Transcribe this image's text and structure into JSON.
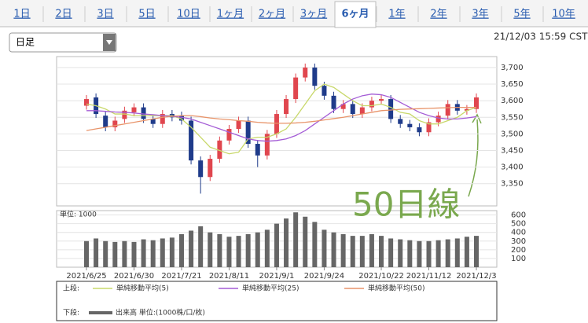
{
  "tabs": [
    "1日",
    "2日",
    "3日",
    "5日",
    "10日",
    "1ヶ月",
    "2ヶ月",
    "3ヶ月",
    "6ヶ月",
    "1年",
    "2年",
    "3年",
    "5年",
    "10年"
  ],
  "selected_tab": 8,
  "dropdown": "日足",
  "timestamp": "21/12/03 15:59 CST",
  "chart_data": {
    "type": "candlestick",
    "categories": [
      "2021/6/25",
      null,
      null,
      null,
      null,
      "2021/6/30",
      null,
      null,
      null,
      null,
      "2021/7/21",
      null,
      null,
      null,
      null,
      "2021/8/11",
      null,
      null,
      null,
      null,
      "2021/9/1",
      null,
      null,
      null,
      null,
      "2021/9/24",
      null,
      null,
      null,
      null,
      null,
      "2021/10/22",
      null,
      null,
      null,
      null,
      "2021/11/12",
      null,
      null,
      null,
      null,
      "2021/12/3"
    ],
    "open": [
      3585,
      3610,
      3555,
      3520,
      3545,
      3565,
      3580,
      3545,
      3530,
      3560,
      3555,
      3540,
      3420,
      3370,
      3425,
      3480,
      3515,
      3540,
      3470,
      3435,
      3500,
      3560,
      3605,
      3670,
      3700,
      3645,
      3615,
      3575,
      3590,
      3560,
      3580,
      3600,
      3605,
      3545,
      3530,
      3520,
      3505,
      3535,
      3555,
      3590,
      3570,
      3575
    ],
    "high": [
      3617,
      3622,
      3567,
      3552,
      3582,
      3592,
      3592,
      3557,
      3572,
      3572,
      3567,
      3552,
      3432,
      3437,
      3492,
      3527,
      3552,
      3552,
      3482,
      3512,
      3572,
      3617,
      3682,
      3712,
      3712,
      3657,
      3627,
      3602,
      3602,
      3592,
      3612,
      3617,
      3617,
      3557,
      3542,
      3532,
      3547,
      3567,
      3602,
      3602,
      3587,
      3622
    ],
    "low": [
      3573,
      3548,
      3508,
      3508,
      3533,
      3553,
      3533,
      3518,
      3518,
      3538,
      3528,
      3408,
      3320,
      3358,
      3413,
      3468,
      3503,
      3458,
      3400,
      3423,
      3488,
      3548,
      3593,
      3658,
      3633,
      3603,
      3563,
      3563,
      3548,
      3548,
      3568,
      3588,
      3533,
      3518,
      3508,
      3493,
      3493,
      3523,
      3543,
      3558,
      3558,
      3563
    ],
    "close": [
      3605,
      3560,
      3520,
      3540,
      3570,
      3580,
      3545,
      3530,
      3560,
      3550,
      3540,
      3420,
      3370,
      3425,
      3480,
      3515,
      3540,
      3470,
      3435,
      3500,
      3560,
      3605,
      3670,
      3700,
      3645,
      3615,
      3575,
      3590,
      3560,
      3580,
      3600,
      3605,
      3545,
      3530,
      3520,
      3505,
      3535,
      3555,
      3590,
      3570,
      3575,
      3610
    ],
    "up_color": "#e0464e",
    "down_color": "#1f3b8a",
    "ylim": [
      3283,
      3733
    ],
    "yticks": [
      {
        "value": 3350,
        "label": "3,350"
      },
      {
        "value": 3400,
        "label": "3,400"
      },
      {
        "value": 3450,
        "label": "3,450"
      },
      {
        "value": 3500,
        "label": "3,500"
      },
      {
        "value": 3550,
        "label": "3,550"
      },
      {
        "value": 3600,
        "label": "3,600"
      },
      {
        "value": 3650,
        "label": "3,650"
      },
      {
        "value": 3700,
        "label": "3,700"
      }
    ],
    "grid": true,
    "series": [
      {
        "name": "単純移動平均(5)",
        "color": "#c8d86a",
        "values": [
          3590,
          3585,
          3575,
          3560,
          3560,
          3555,
          3555,
          3555,
          3555,
          3555,
          3545,
          3520,
          3490,
          3460,
          3450,
          3440,
          3445,
          3485,
          3490,
          3490,
          3500,
          3515,
          3550,
          3590,
          3630,
          3650,
          3640,
          3620,
          3600,
          3585,
          3585,
          3590,
          3580,
          3565,
          3560,
          3540,
          3530,
          3530,
          3540,
          3550,
          3570,
          3580
        ]
      },
      {
        "name": "単純移動平均(25)",
        "color": "#a45cd6",
        "values": [
          3570,
          3570,
          3568,
          3566,
          3565,
          3563,
          3560,
          3558,
          3555,
          3553,
          3550,
          3545,
          3535,
          3525,
          3515,
          3505,
          3495,
          3485,
          3480,
          3478,
          3480,
          3485,
          3495,
          3510,
          3530,
          3550,
          3570,
          3590,
          3605,
          3615,
          3620,
          3618,
          3610,
          3595,
          3580,
          3565,
          3555,
          3548,
          3545,
          3545,
          3548,
          3552
        ]
      },
      {
        "name": "単純移動平均(50)",
        "color": "#e8946a",
        "values": [
          3510,
          3515,
          3520,
          3525,
          3530,
          3535,
          3540,
          3545,
          3550,
          3553,
          3555,
          3555,
          3552,
          3548,
          3545,
          3543,
          3540,
          3538,
          3535,
          3533,
          3532,
          3532,
          3533,
          3535,
          3538,
          3542,
          3546,
          3550,
          3555,
          3560,
          3565,
          3570,
          3572,
          3574,
          3575,
          3576,
          3577,
          3578,
          3579,
          3580,
          3580,
          3580
        ]
      }
    ],
    "volume": {
      "name": "出来高 単位:(1000株/口/枚)",
      "unit_label": "単位: 1000",
      "color": "#666666",
      "values": [
        300,
        330,
        300,
        290,
        300,
        290,
        320,
        310,
        330,
        340,
        380,
        420,
        470,
        400,
        380,
        350,
        360,
        380,
        400,
        430,
        500,
        560,
        630,
        580,
        520,
        430,
        400,
        380,
        360,
        360,
        380,
        360,
        330,
        320,
        310,
        300,
        300,
        310,
        320,
        330,
        350,
        360
      ],
      "ylim": [
        0,
        650
      ],
      "yticks": [
        100,
        200,
        300,
        400,
        500,
        600
      ]
    },
    "legend": {
      "upper_label": "上段:",
      "lower_label": "下段:"
    },
    "annotation": {
      "text": "50日線",
      "color": "#7aa84e"
    }
  }
}
